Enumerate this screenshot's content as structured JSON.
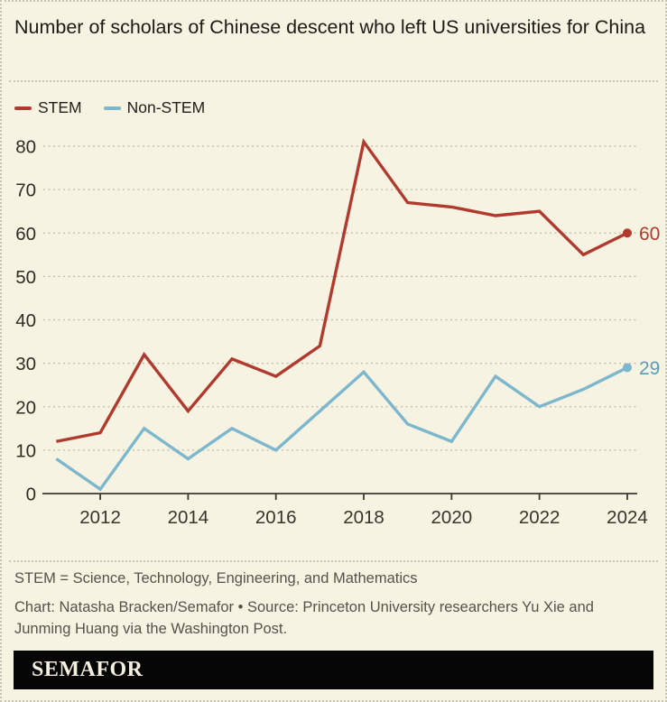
{
  "header": {
    "title": "Number of scholars of Chinese descent who left US universities for China"
  },
  "chart_data": {
    "type": "line",
    "title": "Number of scholars of Chinese descent who left US universities for China",
    "x": [
      2011,
      2012,
      2013,
      2014,
      2015,
      2016,
      2017,
      2018,
      2019,
      2020,
      2021,
      2022,
      2023,
      2024
    ],
    "series": [
      {
        "name": "STEM",
        "color": "#b13a2e",
        "values": [
          12,
          14,
          32,
          19,
          31,
          27,
          34,
          81,
          67,
          66,
          64,
          65,
          55,
          60
        ],
        "end_label": "60",
        "end_label_color": "#b13a2e"
      },
      {
        "name": "Non-STEM",
        "color": "#7db7cd",
        "values": [
          8,
          1,
          15,
          8,
          15,
          10,
          19,
          28,
          16,
          12,
          27,
          20,
          24,
          29
        ],
        "end_label": "29",
        "end_label_color": "#5d9cb5"
      }
    ],
    "xlabel": "",
    "ylabel": "",
    "ylim": [
      0,
      80
    ],
    "yticks": [
      0,
      10,
      20,
      30,
      40,
      50,
      60,
      70,
      80
    ],
    "xticks": [
      2012,
      2014,
      2016,
      2018,
      2020,
      2022,
      2024
    ],
    "grid": "horizontal-dotted",
    "legend_position": "top-left"
  },
  "footer": {
    "note": "STEM = Science, Technology, Engineering, and Mathematics",
    "credit": "Chart: Natasha Bracken/Semafor • Source: Princeton University researchers Yu Xie and Junming Huang via the Washington Post.",
    "brand": "SEMAFOR"
  },
  "colors": {
    "background": "#f7f3e2",
    "stem": "#b13a2e",
    "non_stem": "#7db7cd",
    "text": "#1d1b15",
    "muted_text": "#56524a",
    "grid": "#bdb9a8",
    "axis": "#3c3931",
    "brand_bg": "#060606",
    "brand_text": "#f4f0df"
  }
}
